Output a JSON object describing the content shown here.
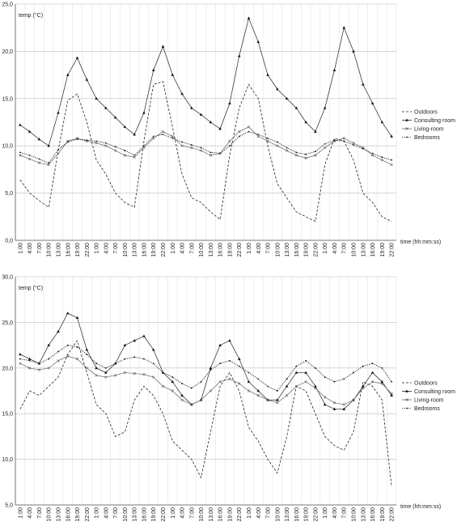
{
  "chart_data": [
    {
      "type": "line",
      "ylabel": "temp (°C)",
      "xlabel": "time (hh:mm:ss)",
      "ylim": [
        0,
        25
      ],
      "yticks": [
        "0,0",
        "5,0",
        "10,0",
        "15,0",
        "20,0",
        "25,0"
      ],
      "ytick_values": [
        0,
        5,
        10,
        15,
        20,
        25
      ],
      "categories": [
        "1:00",
        "4:00",
        "7:00",
        "10:00",
        "13:00",
        "16:00",
        "19:00",
        "22:00",
        "1:00",
        "4:00",
        "7:00",
        "10:00",
        "13:00",
        "16:00",
        "19:00",
        "22:00",
        "1:00",
        "4:00",
        "7:00",
        "10:00",
        "13:00",
        "16:00",
        "19:00",
        "22:00",
        "1:00",
        "4:00",
        "7:00",
        "10:00",
        "13:00",
        "16:00",
        "19:00",
        "22:00",
        "1:00",
        "4:00",
        "7:00",
        "10:00",
        "13:00",
        "16:00",
        "19:00",
        "22:00"
      ],
      "grid": true,
      "legend": "right",
      "series": [
        {
          "name": "Outdoors",
          "style": "dashed",
          "marker": "none",
          "values": [
            6.4,
            5.0,
            4.2,
            3.5,
            9.5,
            14.8,
            15.5,
            12.5,
            8.5,
            7.0,
            5.0,
            4.0,
            3.5,
            10.5,
            16.5,
            16.8,
            12.0,
            7.0,
            4.5,
            4.0,
            3.0,
            2.2,
            9.0,
            14.0,
            16.5,
            15.0,
            10.0,
            6.0,
            4.5,
            3.0,
            2.5,
            2.0,
            8.0,
            10.8,
            10.5,
            8.5,
            5.0,
            4.0,
            2.5,
            2.0
          ]
        },
        {
          "name": "Consulting room",
          "style": "solid",
          "marker": "triangle",
          "values": [
            12.2,
            11.5,
            10.7,
            10.0,
            13.5,
            17.5,
            19.3,
            17.0,
            15.0,
            14.0,
            13.0,
            12.0,
            11.2,
            13.5,
            18.0,
            20.5,
            17.5,
            15.5,
            14.0,
            13.3,
            12.5,
            11.8,
            14.5,
            19.5,
            23.5,
            21.0,
            17.5,
            16.0,
            15.0,
            14.0,
            12.5,
            11.5,
            14.0,
            18.0,
            22.5,
            20.0,
            16.5,
            14.5,
            12.5,
            11.0
          ]
        },
        {
          "name": "Living-room",
          "style": "solid",
          "marker": "x",
          "values": [
            9.0,
            8.6,
            8.2,
            8.0,
            9.2,
            10.5,
            10.8,
            10.5,
            10.3,
            10.0,
            9.5,
            9.0,
            8.8,
            9.8,
            10.8,
            11.5,
            11.0,
            10.0,
            9.8,
            9.5,
            9.0,
            9.2,
            10.5,
            11.5,
            12.0,
            11.0,
            10.5,
            10.0,
            9.5,
            9.0,
            8.7,
            9.0,
            9.8,
            10.5,
            10.8,
            10.3,
            9.8,
            9.0,
            8.5,
            8.0
          ]
        },
        {
          "name": "Bedrooms",
          "style": "dotted",
          "marker": "dot",
          "values": [
            9.3,
            9.0,
            8.6,
            8.2,
            9.6,
            10.4,
            10.7,
            10.6,
            10.5,
            10.3,
            9.9,
            9.5,
            9.0,
            10.0,
            11.0,
            11.2,
            10.8,
            10.4,
            10.1,
            9.8,
            9.3,
            9.2,
            10.0,
            11.0,
            11.5,
            11.2,
            10.8,
            10.4,
            9.8,
            9.3,
            9.1,
            9.4,
            10.2,
            10.6,
            10.5,
            10.1,
            9.7,
            9.2,
            8.8,
            8.5
          ]
        }
      ]
    },
    {
      "type": "line",
      "ylabel": "temp (°C)",
      "xlabel": "time (hh:mm:ss)",
      "ylim": [
        5,
        30
      ],
      "yticks": [
        "5,0",
        "10,0",
        "15,0",
        "20,0",
        "25,0",
        "30,0"
      ],
      "ytick_values": [
        5,
        10,
        15,
        20,
        25,
        30
      ],
      "categories": [
        "1:00",
        "4:00",
        "7:00",
        "10:00",
        "13:00",
        "16:00",
        "19:00",
        "22:00",
        "1:00",
        "4:00",
        "7:00",
        "10:00",
        "13:00",
        "16:00",
        "19:00",
        "22:00",
        "1:00",
        "4:00",
        "7:00",
        "10:00",
        "13:00",
        "16:00",
        "19:00",
        "22:00",
        "1:00",
        "4:00",
        "7:00",
        "10:00",
        "13:00",
        "16:00",
        "19:00",
        "22:00",
        "1:00",
        "4:00",
        "7:00",
        "10:00",
        "13:00",
        "16:00",
        "19:00",
        "22:00"
      ],
      "grid": true,
      "legend": "right",
      "series": [
        {
          "name": "Outdoors",
          "style": "dashed",
          "marker": "none",
          "values": [
            15.5,
            17.5,
            17.0,
            18.0,
            19.0,
            21.5,
            23.0,
            19.5,
            16.0,
            15.0,
            12.5,
            13.0,
            16.5,
            18.0,
            17.0,
            15.0,
            12.0,
            11.0,
            10.0,
            8.0,
            13.0,
            18.0,
            19.5,
            17.5,
            13.5,
            12.0,
            10.0,
            8.5,
            12.5,
            18.0,
            17.5,
            15.0,
            12.5,
            11.5,
            11.0,
            13.0,
            18.5,
            18.0,
            16.5,
            7.0
          ]
        },
        {
          "name": "Consulting room",
          "style": "solid",
          "marker": "triangle",
          "values": [
            21.5,
            21.0,
            20.5,
            22.5,
            24.0,
            26.0,
            25.5,
            22.0,
            20.0,
            19.5,
            20.5,
            22.5,
            23.0,
            23.5,
            22.0,
            19.5,
            18.5,
            17.0,
            16.0,
            16.5,
            20.0,
            22.5,
            23.0,
            21.0,
            18.5,
            17.5,
            16.5,
            16.5,
            18.0,
            19.5,
            19.5,
            18.0,
            16.0,
            15.5,
            15.5,
            16.5,
            18.0,
            19.5,
            18.5,
            17.0
          ]
        },
        {
          "name": "Living-room",
          "style": "solid",
          "marker": "x",
          "values": [
            20.5,
            20.0,
            19.8,
            20.0,
            20.8,
            21.3,
            21.0,
            20.0,
            19.2,
            19.0,
            19.2,
            19.5,
            19.4,
            19.3,
            19.0,
            18.0,
            17.5,
            16.5,
            16.0,
            16.5,
            17.5,
            18.5,
            18.8,
            18.3,
            17.5,
            17.0,
            16.5,
            16.2,
            17.0,
            18.0,
            18.5,
            17.8,
            16.8,
            16.2,
            16.0,
            16.5,
            17.8,
            18.5,
            18.3,
            17.2
          ]
        },
        {
          "name": "Bedrooms",
          "style": "dotted",
          "marker": "dot",
          "values": [
            21.0,
            20.8,
            20.5,
            21.0,
            21.8,
            22.5,
            22.3,
            21.5,
            20.5,
            20.0,
            20.5,
            21.0,
            21.2,
            21.0,
            20.5,
            19.5,
            19.0,
            18.3,
            17.8,
            18.5,
            19.8,
            20.5,
            20.8,
            20.2,
            19.5,
            18.8,
            18.0,
            17.5,
            18.8,
            20.2,
            20.8,
            20.0,
            19.0,
            18.5,
            18.8,
            19.5,
            20.2,
            20.5,
            20.0,
            18.5
          ]
        }
      ]
    }
  ]
}
